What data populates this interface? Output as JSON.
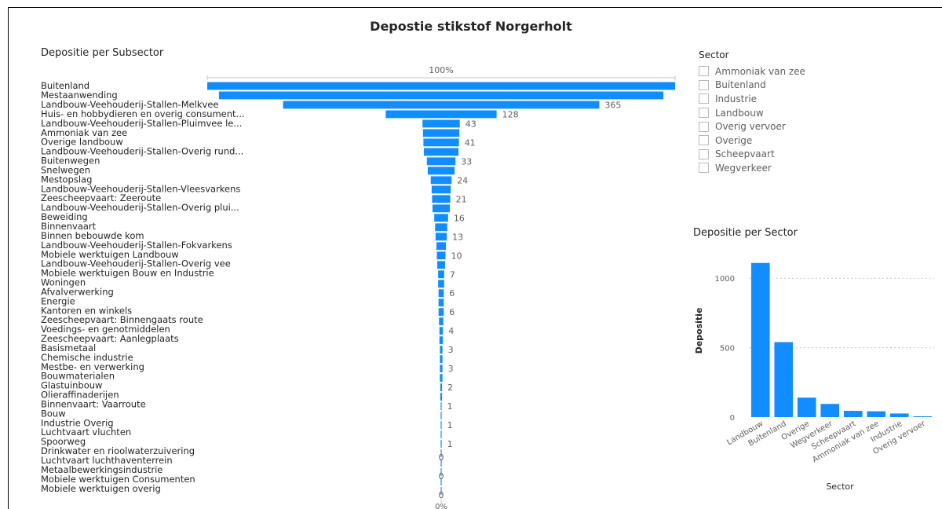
{
  "page_title": "Depostie stikstof Norgerholt",
  "funnel_title": "Depositie per Subsector",
  "sector_chart_title": "Depositie per Sector",
  "slicer": {
    "title": "Sector",
    "items": [
      "Ammoniak van zee",
      "Buitenland",
      "Industrie",
      "Landbouw",
      "Overig vervoer",
      "Overige",
      "Scheepvaart",
      "Wegverkeer"
    ]
  },
  "colors": {
    "bar": "#118DFF",
    "text": "#252423",
    "muted": "#605e5c"
  },
  "chart_data": [
    {
      "type": "bar",
      "orientation": "funnel",
      "title": "Depositie per Subsector",
      "top_label": "100%",
      "bottom_label": "0%",
      "categories": [
        "Buitenland",
        "Mestaanwending",
        "Landbouw-Veehouderij-Stallen-Melkvee",
        "Huis- en hobbydieren en overig consument...",
        "Landbouw-Veehouderij-Stallen-Pluimvee le...",
        "Ammoniak van zee",
        "Overige landbouw",
        "Landbouw-Veehouderij-Stallen-Overig rund...",
        "Buitenwegen",
        "Snelwegen",
        "Mestopslag",
        "Landbouw-Veehouderij-Stallen-Vleesvarkens",
        "Zeescheepvaart: Zeeroute",
        "Landbouw-Veehouderij-Stallen-Overig plui...",
        "Beweiding",
        "Binnenvaart",
        "Binnen bebouwde kom",
        "Landbouw-Veehouderij-Stallen-Fokvarkens",
        "Mobiele werktuigen Landbouw",
        "Landbouw-Veehouderij-Stallen-Overig vee",
        "Mobiele werktuigen Bouw en Industrie",
        "Woningen",
        "Afvalverwerking",
        "Energie",
        "Kantoren en winkels",
        "Zeescheepvaart: Binnengaats route",
        "Voedings- en genotmiddelen",
        "Zeescheepvaart: Aanlegplaats",
        "Basismetaal",
        "Chemische industrie",
        "Mestbe- en verwerking",
        "Bouwmaterialen",
        "Glastuinbouw",
        "Olieraffinaderijen",
        "Binnenvaart: Vaarroute",
        "Bouw",
        "Industrie Overig",
        "Luchtvaart vluchten",
        "Spoorweg",
        "Drinkwater en rioolwaterzuivering",
        "Luchtvaart luchthaventerrein",
        "Metaalbewerkingsindustrie",
        "Mobiele werktuigen Consumenten",
        "Mobiele werktuigen overig"
      ],
      "values": [
        540,
        513,
        365,
        128,
        43,
        42,
        41,
        40,
        33,
        31,
        24,
        22,
        21,
        20,
        16,
        14,
        13,
        11,
        10,
        9,
        7,
        7,
        6,
        6,
        6,
        5,
        4,
        4,
        3,
        3,
        3,
        3,
        2,
        2,
        1,
        1,
        1,
        1,
        1,
        0,
        0,
        0,
        0,
        0
      ],
      "data_labels": [
        "",
        "",
        "365",
        "128",
        "43",
        "",
        "41",
        "",
        "33",
        "",
        "24",
        "",
        "21",
        "",
        "16",
        "",
        "13",
        "",
        "10",
        "",
        "7",
        "",
        "6",
        "",
        "6",
        "",
        "4",
        "",
        "3",
        "",
        "3",
        "",
        "2",
        "",
        "1",
        "",
        "1",
        "",
        "1",
        "0",
        "",
        "0",
        "",
        "0"
      ]
    },
    {
      "type": "bar",
      "title": "Depositie per Sector",
      "xlabel": "Sector",
      "ylabel": "Depositie",
      "categories": [
        "Landbouw",
        "Buitenland",
        "Overige",
        "Wegverkeer",
        "Scheepvaart",
        "Ammoniak van zee",
        "Industrie",
        "Overig vervoer"
      ],
      "values": [
        1110,
        540,
        140,
        95,
        45,
        42,
        26,
        6
      ],
      "yticks": [
        0,
        500,
        1000
      ],
      "ylim": [
        0,
        1250
      ]
    }
  ]
}
